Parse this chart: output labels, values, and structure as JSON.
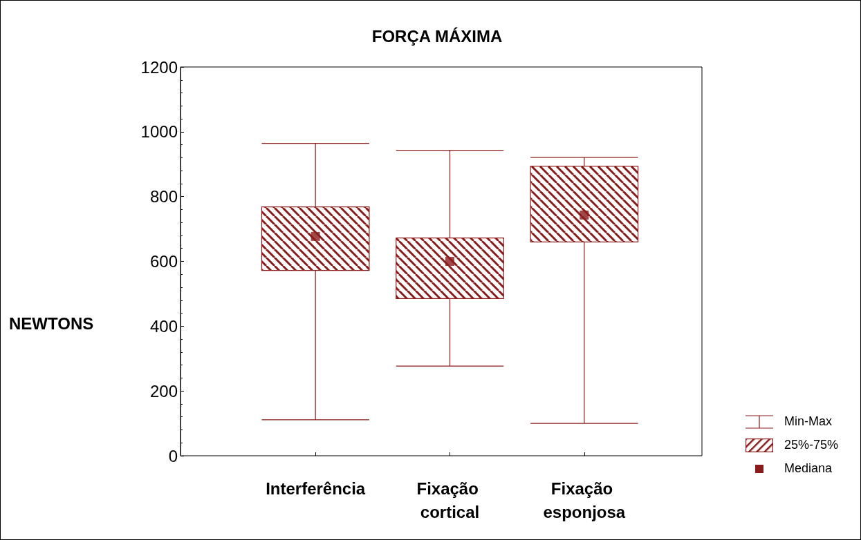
{
  "chart_data": {
    "type": "box",
    "title": "FORÇA MÁXIMA",
    "ylabel": "NEWTONS",
    "categories": [
      "Interferência",
      "Fixação cortical",
      "Fixação esponjosa"
    ],
    "color": "#8b1a1a",
    "boxes": [
      {
        "low": 111,
        "q1": 572,
        "median": 677,
        "q3": 768,
        "high": 964
      },
      {
        "low": 277,
        "q1": 485,
        "median": 600,
        "q3": 672,
        "high": 943
      },
      {
        "low": 100,
        "q1": 660,
        "median": 743,
        "q3": 894,
        "high": 921
      }
    ],
    "ylim": [
      0,
      1200
    ],
    "yticks": [
      0,
      200,
      400,
      600,
      800,
      1000,
      1200
    ],
    "grid": false,
    "marker": "square",
    "annotations": [
      "Min-Max",
      "25%-75%",
      "Mediana"
    ]
  }
}
